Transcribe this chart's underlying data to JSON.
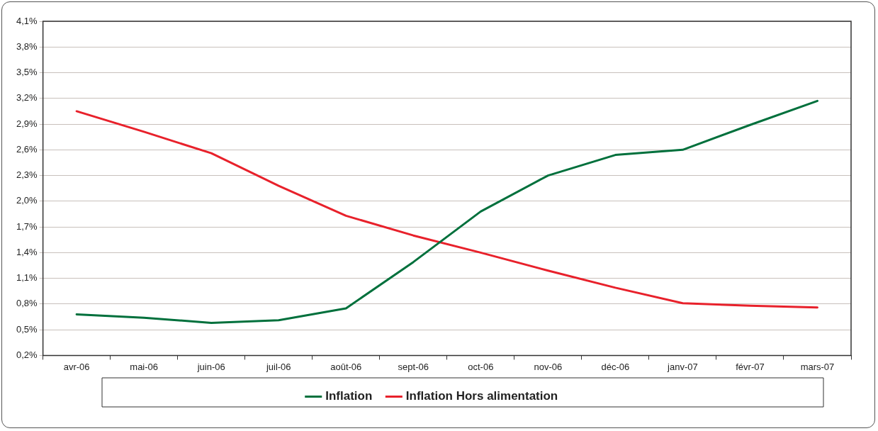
{
  "chart_data": {
    "type": "line",
    "categories": [
      "avr-06",
      "mai-06",
      "juin-06",
      "juil-06",
      "août-06",
      "sept-06",
      "oct-06",
      "nov-06",
      "déc-06",
      "janv-07",
      "févr-07",
      "mars-07"
    ],
    "series": [
      {
        "name": "Inflation",
        "color": "#00703c",
        "values": [
          0.68,
          0.64,
          0.58,
          0.61,
          0.75,
          1.29,
          1.88,
          2.3,
          2.54,
          2.6,
          2.89,
          3.17
        ]
      },
      {
        "name": "Inflation Hors alimentation",
        "color": "#e8212b",
        "values": [
          3.05,
          2.81,
          2.56,
          2.18,
          1.83,
          1.6,
          1.4,
          1.19,
          0.99,
          0.81,
          0.78,
          0.76
        ]
      }
    ],
    "ylim": [
      0.2,
      4.1
    ],
    "yticks": [
      {
        "value": 0.2,
        "label": "0,2%"
      },
      {
        "value": 0.5,
        "label": "0,5%"
      },
      {
        "value": 0.8,
        "label": "0,8%"
      },
      {
        "value": 1.1,
        "label": "1,1%"
      },
      {
        "value": 1.4,
        "label": "1,4%"
      },
      {
        "value": 1.7,
        "label": "1,7%"
      },
      {
        "value": 2.0,
        "label": "2,0%"
      },
      {
        "value": 2.3,
        "label": "2,3%"
      },
      {
        "value": 2.6,
        "label": "2,6%"
      },
      {
        "value": 2.9,
        "label": "2,9%"
      },
      {
        "value": 3.2,
        "label": "3,2%"
      },
      {
        "value": 3.5,
        "label": "3,5%"
      },
      {
        "value": 3.8,
        "label": "3,8%"
      },
      {
        "value": 4.1,
        "label": "4,1%"
      }
    ],
    "grid": "y",
    "legend": "bottom",
    "marker": "none",
    "line_style": "solid"
  }
}
